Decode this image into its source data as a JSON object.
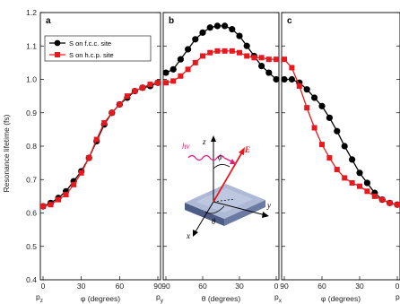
{
  "chart_data": {
    "type": "line",
    "ylabel": "Resonance lifetime (fs)",
    "ylim": [
      0.4,
      1.2
    ],
    "yticks": [
      "0.4",
      "0.5",
      "0.6",
      "0.7",
      "0.8",
      "0.9",
      "1.0",
      "1.1",
      "1.2"
    ],
    "grid": false,
    "legend": {
      "position": "top-left",
      "entries": [
        {
          "label": "S on f.c.c. site",
          "color": "#000000",
          "marker": "circle"
        },
        {
          "label": "S on h.c.p. site",
          "color": "#e8191e",
          "marker": "square"
        }
      ]
    },
    "panels": [
      {
        "letter": "a",
        "xlabel": "φ (degrees)",
        "xlim": [
          0,
          90
        ],
        "xticks": [
          "0",
          "30",
          "60",
          "90"
        ],
        "end_labels": {
          "left": "p",
          "left_sub": "z",
          "right": "p",
          "right_sub": "y"
        },
        "series": [
          {
            "name": "S on f.c.c. site",
            "x": [
              0,
              6,
              12,
              18,
              24,
              30,
              36,
              42,
              48,
              54,
              60,
              66,
              72,
              78,
              84,
              90
            ],
            "y": [
              0.62,
              0.63,
              0.645,
              0.665,
              0.695,
              0.725,
              0.765,
              0.815,
              0.865,
              0.9,
              0.925,
              0.945,
              0.965,
              0.975,
              0.98,
              0.99
            ]
          },
          {
            "name": "S on h.c.p. site",
            "x": [
              0,
              6,
              12,
              18,
              24,
              30,
              36,
              42,
              48,
              54,
              60,
              66,
              72,
              78,
              84,
              90
            ],
            "y": [
              0.62,
              0.625,
              0.64,
              0.655,
              0.685,
              0.72,
              0.765,
              0.82,
              0.87,
              0.9,
              0.925,
              0.95,
              0.965,
              0.975,
              0.985,
              0.99
            ]
          }
        ]
      },
      {
        "letter": "b",
        "xlabel": "θ (degrees)",
        "xlim": [
          90,
          0
        ],
        "xticks": [
          "90",
          "60",
          "30",
          "0"
        ],
        "end_labels": {
          "left": "",
          "left_sub": "",
          "right": "p",
          "right_sub": "x"
        },
        "series": [
          {
            "name": "S on f.c.c. site",
            "x": [
              90,
              84,
              78,
              72,
              66,
              60,
              54,
              48,
              42,
              36,
              30,
              24,
              18,
              12,
              6,
              0
            ],
            "y": [
              1.02,
              1.03,
              1.06,
              1.09,
              1.12,
              1.14,
              1.155,
              1.16,
              1.16,
              1.15,
              1.13,
              1.1,
              1.07,
              1.04,
              1.02,
              1.0
            ]
          },
          {
            "name": "S on h.c.p. site",
            "x": [
              90,
              84,
              78,
              72,
              66,
              60,
              54,
              48,
              42,
              36,
              30,
              24,
              18,
              12,
              6,
              0
            ],
            "y": [
              0.99,
              0.995,
              1.01,
              1.03,
              1.05,
              1.07,
              1.08,
              1.085,
              1.085,
              1.085,
              1.08,
              1.07,
              1.065,
              1.065,
              1.06,
              1.06
            ]
          }
        ]
      },
      {
        "letter": "c",
        "xlabel": "φ (degrees)",
        "xlim": [
          90,
          0
        ],
        "xticks": [
          "90",
          "60",
          "30",
          "0"
        ],
        "end_labels": {
          "left": "",
          "left_sub": "",
          "right": "p",
          "right_sub": ""
        },
        "series": [
          {
            "name": "S on f.c.c. site",
            "x": [
              90,
              84,
              78,
              72,
              66,
              60,
              54,
              48,
              42,
              36,
              30,
              24,
              18,
              12,
              6,
              0
            ],
            "y": [
              1.0,
              1.0,
              0.99,
              0.97,
              0.945,
              0.92,
              0.885,
              0.845,
              0.8,
              0.76,
              0.72,
              0.69,
              0.66,
              0.64,
              0.63,
              0.625
            ]
          },
          {
            "name": "S on h.c.p. site",
            "x": [
              90,
              84,
              78,
              72,
              66,
              60,
              54,
              48,
              42,
              36,
              30,
              24,
              18,
              12,
              6,
              0
            ],
            "y": [
              1.06,
              1.035,
              0.98,
              0.915,
              0.855,
              0.805,
              0.765,
              0.73,
              0.705,
              0.69,
              0.68,
              0.665,
              0.65,
              0.64,
              0.63,
              0.625
            ]
          }
        ]
      }
    ]
  },
  "inset": {
    "labels": {
      "hv": "hν",
      "z": "z",
      "phi": "ϕ",
      "E": "E",
      "y": "y",
      "x": "x",
      "theta": "θ"
    },
    "colors": {
      "photon": "#e8197d",
      "field": "#e8191e",
      "slab_top": "#aeb9d6",
      "slab_side": "#5f6f98"
    }
  }
}
